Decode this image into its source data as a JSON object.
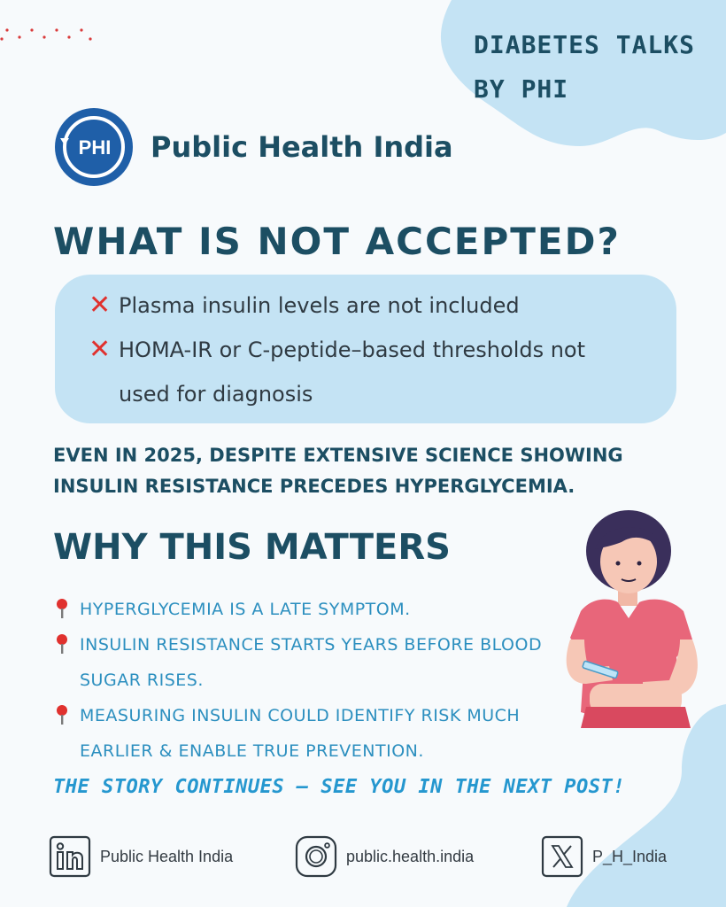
{
  "series": {
    "line1": "DIABETES TALKS",
    "line2": "BY PHI"
  },
  "brand": {
    "logo_text": "PHI",
    "name": "Public Health India"
  },
  "heading": "WHAT IS NOT ACCEPTED?",
  "not_accepted": [
    {
      "icon": "cross-mark-icon",
      "text": "Plasma insulin levels are not included"
    },
    {
      "icon": "cross-mark-icon",
      "text": "HOMA-IR or C-peptide–based thresholds not used for diagnosis"
    }
  ],
  "statement": "EVEN IN 2025, DESPITE EXTENSIVE SCIENCE SHOWING INSULIN RESISTANCE PRECEDES HYPERGLYCEMIA.",
  "why_title": "WHY THIS MATTERS",
  "points": [
    "HYPERGLYCEMIA IS A LATE SYMPTOM.",
    "INSULIN RESISTANCE STARTS YEARS BEFORE BLOOD SUGAR RISES.",
    "MEASURING INSULIN COULD IDENTIFY RISK MUCH EARLIER & ENABLE TRUE PREVENTION."
  ],
  "continues": "THE STORY CONTINUES — SEE YOU IN THE NEXT POST!",
  "social": {
    "linkedin": {
      "icon": "linkedin-icon",
      "label": "Public Health India"
    },
    "instagram": {
      "icon": "instagram-icon",
      "label": "public.health.india"
    },
    "x": {
      "icon": "x-icon",
      "label": "P_H_India"
    }
  },
  "colors": {
    "navy": "#1c4e63",
    "light_blue": "#c4e3f4",
    "accent_blue": "#2c8fbf",
    "cross_red": "#e0312e",
    "logo_blue": "#1f5fa8"
  }
}
